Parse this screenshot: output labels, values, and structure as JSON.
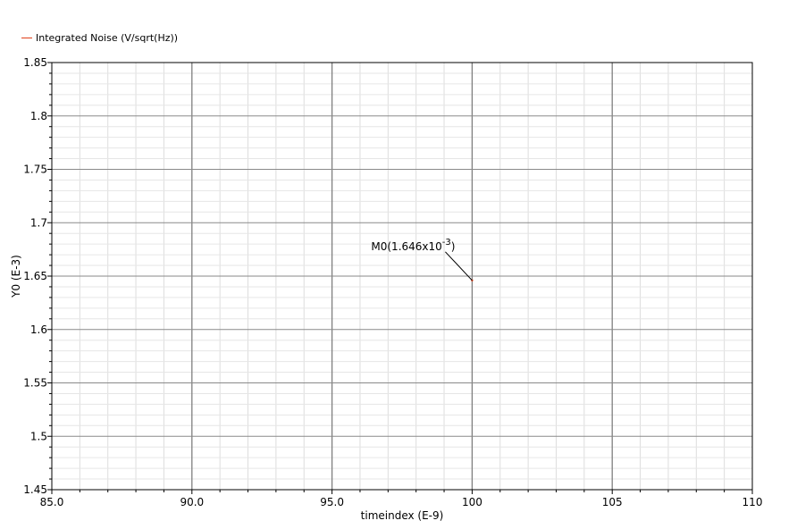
{
  "chart_data": {
    "type": "line",
    "title": "",
    "xlabel": "timeindex (E-9)",
    "ylabel": "Y0 (E-3)",
    "xlim": [
      85,
      110
    ],
    "ylim": [
      1.45,
      1.85
    ],
    "x_ticks": [
      85,
      90,
      95,
      100,
      105,
      110
    ],
    "x_tick_labels": [
      "85.0",
      "90.0",
      "95.0",
      "100",
      "105",
      "110"
    ],
    "y_ticks": [
      1.45,
      1.5,
      1.55,
      1.6,
      1.65,
      1.7,
      1.75,
      1.8,
      1.85
    ],
    "y_tick_labels": [
      "1.45",
      "1.5",
      "1.55",
      "1.6",
      "1.65",
      "1.7",
      "1.75",
      "1.8",
      "1.85"
    ],
    "grid": true,
    "legend_position": "top-left",
    "series": [
      {
        "name": "Integrated Noise (V/sqrt(Hz))",
        "color": "#e0401a",
        "x": [
          100
        ],
        "y": [
          1.646
        ]
      }
    ],
    "annotations": [
      {
        "text": "M0(1.646x10",
        "superscript": "-3",
        "close": ")",
        "x": 100,
        "y": 1.646
      }
    ]
  }
}
